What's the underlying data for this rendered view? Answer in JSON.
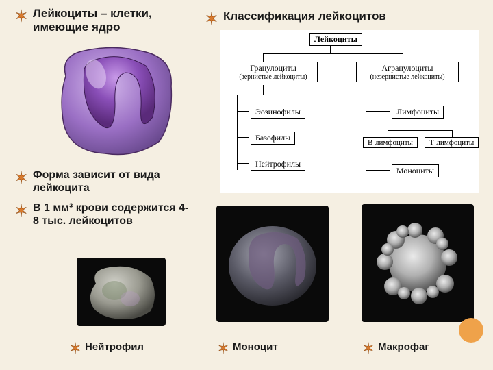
{
  "colors": {
    "background": "#f5efe2",
    "star_fill": "#d97a2d",
    "star_stroke": "#8a4a15",
    "text": "#1a1a1a",
    "cell_purple_dark": "#6a3d8f",
    "cell_purple_mid": "#9a6fc4",
    "cell_purple_light": "#d4b8ec",
    "cell_outline": "#4a2a60",
    "dark_bg": "#0a0a0a",
    "neutro_gray": "#9a9a98",
    "neutro_green": "#7a8a6a",
    "mono_gray": "#5a5a62",
    "macro_gray": "#b8b8b8",
    "corner_circle": "#efa24a",
    "classification_bg": "#ffffff"
  },
  "header_left": "Лейкоциты – клетки, имеющие ядро",
  "header_right": "Классификация лейкоцитов",
  "mid_text1": "Форма зависит от вида лейкоцита",
  "mid_text2": "В 1 мм³ крови содержится 4-8 тыс. лейкоцитов",
  "labels": {
    "neutrophil": "Нейтрофил",
    "monocyte": "Моноцит",
    "macrophage": "Макрофаг"
  },
  "classification": {
    "root": "Лейкоциты",
    "left": {
      "title": "Гранулоциты",
      "sub": "(зернистые лейкоциты)",
      "children": [
        "Эозинофилы",
        "Базофилы",
        "Нейтрофилы"
      ]
    },
    "right": {
      "title": "Агранулоциты",
      "sub": "(незернистые лейкоциты)",
      "children": [
        "Лимфоциты",
        "Моноциты"
      ],
      "lymph_sub": [
        "В-лимфоциты",
        "Т-лимфоциты"
      ]
    }
  },
  "typography": {
    "header_fontsize": 17,
    "mid_fontsize": 16,
    "label_fontsize": 15
  }
}
